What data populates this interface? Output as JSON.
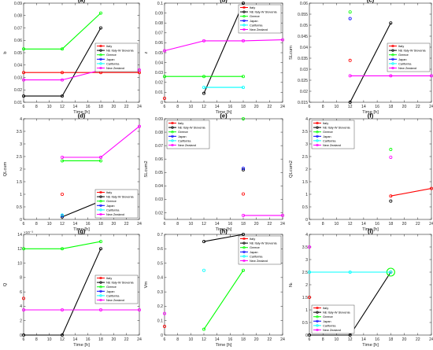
{
  "colors": {
    "Italy": "#ff0000",
    "NE Italy-W Slovenia": "#000000",
    "Greece": "#00ff00",
    "Japan": "#0000ff",
    "California": "#00ffff",
    "New Zealand": "#ff00ff"
  },
  "chart_data": [
    {
      "type": "line",
      "title": "(a)",
      "xlabel": "Time [h]",
      "ylabel": "b",
      "multiplier": "",
      "xlim": [
        6,
        24
      ],
      "xticks": [
        6,
        8,
        10,
        12,
        14,
        16,
        18,
        20,
        22,
        24
      ],
      "ylim": [
        0.01,
        0.09
      ],
      "yticks": [
        0.01,
        0.02,
        0.03,
        0.04,
        0.05,
        0.06,
        0.07,
        0.08,
        0.09
      ],
      "yticklabels": [
        "0.01",
        "0.02",
        "0.03",
        "0.04",
        "0.05",
        "0.06",
        "0.07",
        "0.08",
        "0.09"
      ],
      "legend": "center-right",
      "series": [
        {
          "name": "Italy",
          "x": [
            6,
            12,
            18,
            24
          ],
          "y": [
            0.034,
            0.034,
            0.034,
            0.034
          ]
        },
        {
          "name": "NE Italy-W Slovenia",
          "x": [
            6,
            12,
            18
          ],
          "y": [
            0.015,
            0.015,
            0.07
          ]
        },
        {
          "name": "Greece",
          "x": [
            6,
            12,
            18
          ],
          "y": [
            0.053,
            0.053,
            0.082
          ]
        },
        {
          "name": "Japan",
          "x": [],
          "y": []
        },
        {
          "name": "California",
          "x": [],
          "y": []
        },
        {
          "name": "New Zealand",
          "x": [
            6,
            12,
            18,
            24
          ],
          "y": [
            0.028,
            0.028,
            0.036,
            0.036
          ]
        }
      ]
    },
    {
      "type": "line",
      "title": "(b)",
      "xlabel": "Time [h]",
      "ylabel": "z",
      "multiplier": "",
      "xlim": [
        6,
        24
      ],
      "xticks": [
        6,
        8,
        10,
        12,
        14,
        16,
        18,
        20,
        22,
        24
      ],
      "ylim": [
        0,
        0.1
      ],
      "yticks": [
        0,
        0.01,
        0.02,
        0.03,
        0.04,
        0.05,
        0.06,
        0.07,
        0.08,
        0.09,
        0.1
      ],
      "yticklabels": [
        "0",
        "0.01",
        "0.02",
        "0.03",
        "0.04",
        "0.05",
        "0.06",
        "0.07",
        "0.08",
        "0.09",
        "0.1"
      ],
      "legend": "top-right",
      "series": [
        {
          "name": "Italy",
          "x": [
            6
          ],
          "y": [
            0.004
          ]
        },
        {
          "name": "NE Italy-W Slovenia",
          "x": [
            12,
            18
          ],
          "y": [
            0.009,
            0.1
          ]
        },
        {
          "name": "Greece",
          "x": [
            6,
            12,
            18
          ],
          "y": [
            0.026,
            0.026,
            0.026
          ]
        },
        {
          "name": "Japan",
          "x": [],
          "y": []
        },
        {
          "name": "California",
          "x": [
            12,
            18
          ],
          "y": [
            0.015,
            0.015
          ]
        },
        {
          "name": "New Zealand",
          "x": [
            6,
            12,
            18,
            24
          ],
          "y": [
            0.052,
            0.062,
            0.062,
            0.063
          ]
        }
      ]
    },
    {
      "type": "line",
      "title": "(c)",
      "xlabel": "Time [h]",
      "ylabel": "SLcum",
      "multiplier": "",
      "xlim": [
        6,
        24
      ],
      "xticks": [
        6,
        8,
        10,
        12,
        14,
        16,
        18,
        20,
        22,
        24
      ],
      "ylim": [
        0.015,
        0.06
      ],
      "yticks": [
        0.015,
        0.02,
        0.025,
        0.03,
        0.035,
        0.04,
        0.045,
        0.05,
        0.055,
        0.06
      ],
      "yticklabels": [
        "0.015",
        "0.02",
        "0.025",
        "0.03",
        "0.035",
        "0.04",
        "0.045",
        "0.05",
        "0.055",
        "0.06"
      ],
      "legend": "center-right",
      "series": [
        {
          "name": "Italy",
          "x": [
            12
          ],
          "y": [
            0.034
          ]
        },
        {
          "name": "NE Italy-W Slovenia",
          "x": [
            12,
            18
          ],
          "y": [
            0.015,
            0.051
          ]
        },
        {
          "name": "Greece",
          "x": [
            12
          ],
          "y": [
            0.056
          ]
        },
        {
          "name": "Japan",
          "x": [
            12
          ],
          "y": [
            0.053
          ]
        },
        {
          "name": "California",
          "x": [],
          "y": []
        },
        {
          "name": "New Zealand",
          "x": [
            12,
            18,
            24
          ],
          "y": [
            0.027,
            0.027,
            0.027
          ]
        }
      ]
    },
    {
      "type": "line",
      "title": "(d)",
      "xlabel": "Time [h]",
      "ylabel": "QLcum",
      "multiplier": "",
      "xlim": [
        6,
        24
      ],
      "xticks": [
        6,
        8,
        10,
        12,
        14,
        16,
        18,
        20,
        22,
        24
      ],
      "ylim": [
        0,
        4
      ],
      "yticks": [
        0,
        0.5,
        1,
        1.5,
        2,
        2.5,
        3,
        3.5,
        4
      ],
      "yticklabels": [
        "0",
        "0.5",
        "1",
        "1.5",
        "2",
        "2.5",
        "3",
        "3.5",
        "4"
      ],
      "legend": "bottom-right",
      "series": [
        {
          "name": "Italy",
          "x": [
            12
          ],
          "y": [
            1.0
          ]
        },
        {
          "name": "NE Italy-W Slovenia",
          "x": [
            12,
            18
          ],
          "y": [
            0.1,
            0.73
          ]
        },
        {
          "name": "Greece",
          "x": [
            12,
            18
          ],
          "y": [
            2.33,
            2.33
          ]
        },
        {
          "name": "Japan",
          "x": [
            12
          ],
          "y": [
            0.15
          ]
        },
        {
          "name": "California",
          "x": [
            12
          ],
          "y": [
            0.17
          ]
        },
        {
          "name": "New Zealand",
          "x": [
            12,
            18,
            24
          ],
          "y": [
            2.47,
            2.47,
            3.7
          ]
        }
      ]
    },
    {
      "type": "line",
      "title": "(e)",
      "xlabel": "Time [h]",
      "ylabel": "SLcum2",
      "multiplier": "",
      "xlim": [
        6,
        24
      ],
      "xticks": [
        6,
        8,
        10,
        12,
        14,
        16,
        18,
        20,
        22,
        24
      ],
      "ylim": [
        0.015,
        0.09
      ],
      "yticks": [
        0.02,
        0.03,
        0.04,
        0.05,
        0.06,
        0.07,
        0.08,
        0.09
      ],
      "yticklabels": [
        "0.02",
        "0.03",
        "0.04",
        "0.05",
        "0.06",
        "0.07",
        "0.08",
        "0.09"
      ],
      "legend": "top-left",
      "series": [
        {
          "name": "Italy",
          "x": [
            18
          ],
          "y": [
            0.034
          ]
        },
        {
          "name": "NE Italy-W Slovenia",
          "x": [
            18
          ],
          "y": [
            0.052
          ]
        },
        {
          "name": "Greece",
          "x": [
            18
          ],
          "y": [
            0.09
          ]
        },
        {
          "name": "Japan",
          "x": [
            18
          ],
          "y": [
            0.053
          ]
        },
        {
          "name": "California",
          "x": [],
          "y": []
        },
        {
          "name": "New Zealand",
          "x": [
            18,
            24
          ],
          "y": [
            0.018,
            0.018
          ]
        }
      ]
    },
    {
      "type": "line",
      "title": "(f)",
      "xlabel": "Time [h]",
      "ylabel": "QLcum2",
      "multiplier": "",
      "xlim": [
        6,
        24
      ],
      "xticks": [
        6,
        8,
        10,
        12,
        14,
        16,
        18,
        20,
        22,
        24
      ],
      "ylim": [
        0,
        4
      ],
      "yticks": [
        0,
        0.5,
        1,
        1.5,
        2,
        2.5,
        3,
        3.5,
        4
      ],
      "yticklabels": [
        "0",
        "0.5",
        "1",
        "1.5",
        "2",
        "2.5",
        "3",
        "3.5",
        "4"
      ],
      "legend": "top-left",
      "series": [
        {
          "name": "Italy",
          "x": [
            18,
            24
          ],
          "y": [
            0.93,
            1.23
          ]
        },
        {
          "name": "NE Italy-W Slovenia",
          "x": [
            18
          ],
          "y": [
            0.73
          ]
        },
        {
          "name": "Greece",
          "x": [
            18
          ],
          "y": [
            2.78
          ]
        },
        {
          "name": "Japan",
          "x": [],
          "y": []
        },
        {
          "name": "California",
          "x": [],
          "y": []
        },
        {
          "name": "New Zealand",
          "x": [
            18
          ],
          "y": [
            2.47
          ]
        }
      ]
    },
    {
      "type": "line",
      "title": "(g)",
      "xlabel": "Time [h]",
      "ylabel": "Q",
      "multiplier": "×10⁻³",
      "xlim": [
        6,
        24
      ],
      "xticks": [
        6,
        8,
        10,
        12,
        14,
        16,
        18,
        20,
        22,
        24
      ],
      "ylim": [
        0,
        14
      ],
      "yticks": [
        0,
        2,
        4,
        6,
        8,
        10,
        12,
        14
      ],
      "yticklabels": [
        "0",
        "2",
        "4",
        "6",
        "8",
        "10",
        "12",
        "14"
      ],
      "legend": "center-right",
      "series": [
        {
          "name": "Italy",
          "x": [
            6
          ],
          "y": [
            5.1
          ]
        },
        {
          "name": "NE Italy-W Slovenia",
          "x": [
            6,
            12,
            18
          ],
          "y": [
            0,
            0,
            12
          ]
        },
        {
          "name": "Greece",
          "x": [
            6,
            12,
            18
          ],
          "y": [
            12,
            12,
            13
          ]
        },
        {
          "name": "Japan",
          "x": [],
          "y": []
        },
        {
          "name": "California",
          "x": [],
          "y": []
        },
        {
          "name": "New Zealand",
          "x": [
            6,
            12,
            18,
            24
          ],
          "y": [
            3.5,
            3.5,
            3.5,
            3.5
          ]
        }
      ]
    },
    {
      "type": "line",
      "title": "(h)",
      "xlabel": "Time [h]",
      "ylabel": "Vm",
      "multiplier": "",
      "xlim": [
        6,
        24
      ],
      "xticks": [
        6,
        8,
        10,
        12,
        14,
        16,
        18,
        20,
        22,
        24
      ],
      "ylim": [
        0,
        0.7
      ],
      "yticks": [
        0,
        0.1,
        0.2,
        0.3,
        0.4,
        0.5,
        0.6,
        0.7
      ],
      "yticklabels": [
        "0",
        "0.1",
        "0.2",
        "0.3",
        "0.4",
        "0.5",
        "0.6",
        "0.7"
      ],
      "legend": "top-right",
      "series": [
        {
          "name": "Italy",
          "x": [
            6
          ],
          "y": [
            0.06
          ]
        },
        {
          "name": "NE Italy-W Slovenia",
          "x": [
            12,
            18
          ],
          "y": [
            0.65,
            0.7
          ]
        },
        {
          "name": "Greece",
          "x": [
            12,
            18
          ],
          "y": [
            0.04,
            0.45
          ]
        },
        {
          "name": "Japan",
          "x": [],
          "y": []
        },
        {
          "name": "California",
          "x": [
            12
          ],
          "y": [
            0.45
          ]
        },
        {
          "name": "New Zealand",
          "x": [
            6
          ],
          "y": [
            0.15
          ]
        }
      ]
    },
    {
      "type": "line",
      "title": "(i)",
      "xlabel": "Time [h]",
      "ylabel": "Nₜ",
      "multiplier": "",
      "xlim": [
        6,
        24
      ],
      "xticks": [
        6,
        8,
        10,
        12,
        14,
        16,
        18,
        20,
        22,
        24
      ],
      "ylim": [
        0,
        4
      ],
      "yticks": [
        0,
        0.5,
        1,
        1.5,
        2,
        2.5,
        3,
        3.5,
        4
      ],
      "yticklabels": [
        "0",
        "0.5",
        "1",
        "1.5",
        "2",
        "2.5",
        "3",
        "3.5",
        "4"
      ],
      "legend": "bottom-left",
      "series": [
        {
          "name": "Italy",
          "x": [
            6
          ],
          "y": [
            1.5
          ]
        },
        {
          "name": "NE Italy-W Slovenia",
          "x": [
            6,
            12,
            18
          ],
          "y": [
            0,
            0,
            2.5
          ]
        },
        {
          "name": "Greece",
          "x": [
            18
          ],
          "y": [
            2.5
          ]
        },
        {
          "name": "Japan",
          "x": [],
          "y": []
        },
        {
          "name": "California",
          "x": [
            6,
            12,
            18
          ],
          "y": [
            2.5,
            2.5,
            2.5
          ]
        },
        {
          "name": "New Zealand",
          "x": [
            6
          ],
          "y": [
            3.5
          ]
        }
      ]
    }
  ]
}
